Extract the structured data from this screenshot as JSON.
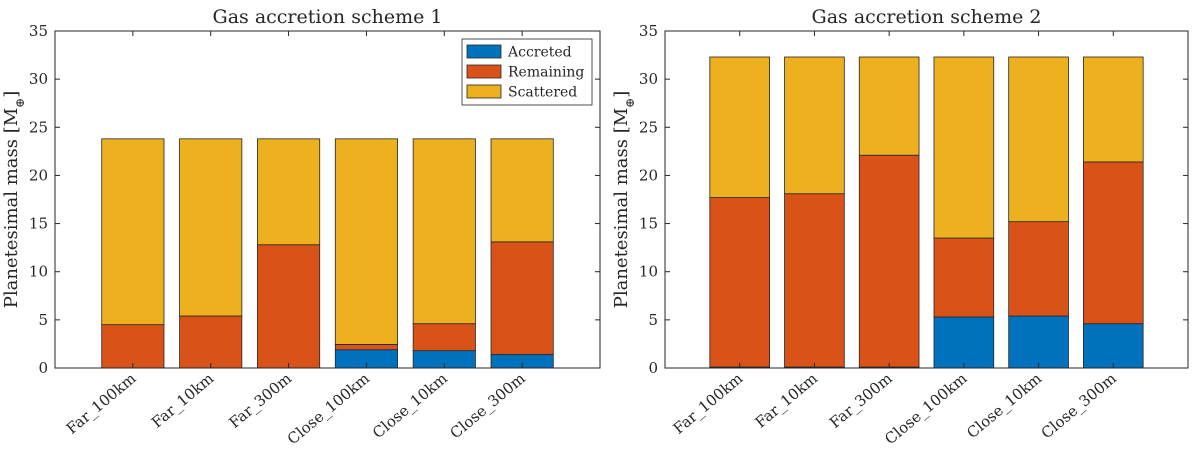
{
  "chart_data": [
    {
      "type": "bar",
      "stacked": true,
      "title": "Gas accretion scheme 1",
      "ylabel": "Planetesimal mass [M",
      "ylabel_subscript": "⊕",
      "ylabel_close": "]",
      "ylim": [
        0,
        35
      ],
      "yticks": [
        0,
        5,
        10,
        15,
        20,
        25,
        30,
        35
      ],
      "categories": [
        "Far_100km",
        "Far_10km",
        "Far_300m",
        "Close_100km",
        "Close_10km",
        "Close_300m"
      ],
      "series": [
        {
          "name": "Accreted",
          "color": "#0072BD",
          "values": [
            0.0,
            0.0,
            0.0,
            1.9,
            1.8,
            1.4
          ]
        },
        {
          "name": "Remaining",
          "color": "#D95319",
          "values": [
            4.5,
            5.4,
            12.8,
            0.55,
            2.8,
            11.7
          ]
        },
        {
          "name": "Scattered",
          "color": "#EDB120",
          "values": [
            19.3,
            18.4,
            11.0,
            21.35,
            19.2,
            10.7
          ]
        }
      ],
      "legend": {
        "position": "top-right",
        "entries": [
          "Accreted",
          "Remaining",
          "Scattered"
        ]
      }
    },
    {
      "type": "bar",
      "stacked": true,
      "title": "Gas accretion scheme 2",
      "ylabel": "Planetesimal mass [M",
      "ylabel_subscript": "⊕",
      "ylabel_close": "]",
      "ylim": [
        0,
        35
      ],
      "yticks": [
        0,
        5,
        10,
        15,
        20,
        25,
        30,
        35
      ],
      "categories": [
        "Far_100km",
        "Far_10km",
        "Far_300m",
        "Close_100km",
        "Close_10km",
        "Close_300m"
      ],
      "series": [
        {
          "name": "Accreted",
          "color": "#0072BD",
          "values": [
            0.1,
            0.1,
            0.1,
            5.3,
            5.4,
            4.6
          ]
        },
        {
          "name": "Remaining",
          "color": "#D95319",
          "values": [
            17.6,
            18.0,
            22.0,
            8.2,
            9.8,
            16.8
          ]
        },
        {
          "name": "Scattered",
          "color": "#EDB120",
          "values": [
            14.6,
            14.2,
            10.2,
            18.8,
            17.1,
            10.9
          ]
        }
      ],
      "legend": null
    }
  ]
}
